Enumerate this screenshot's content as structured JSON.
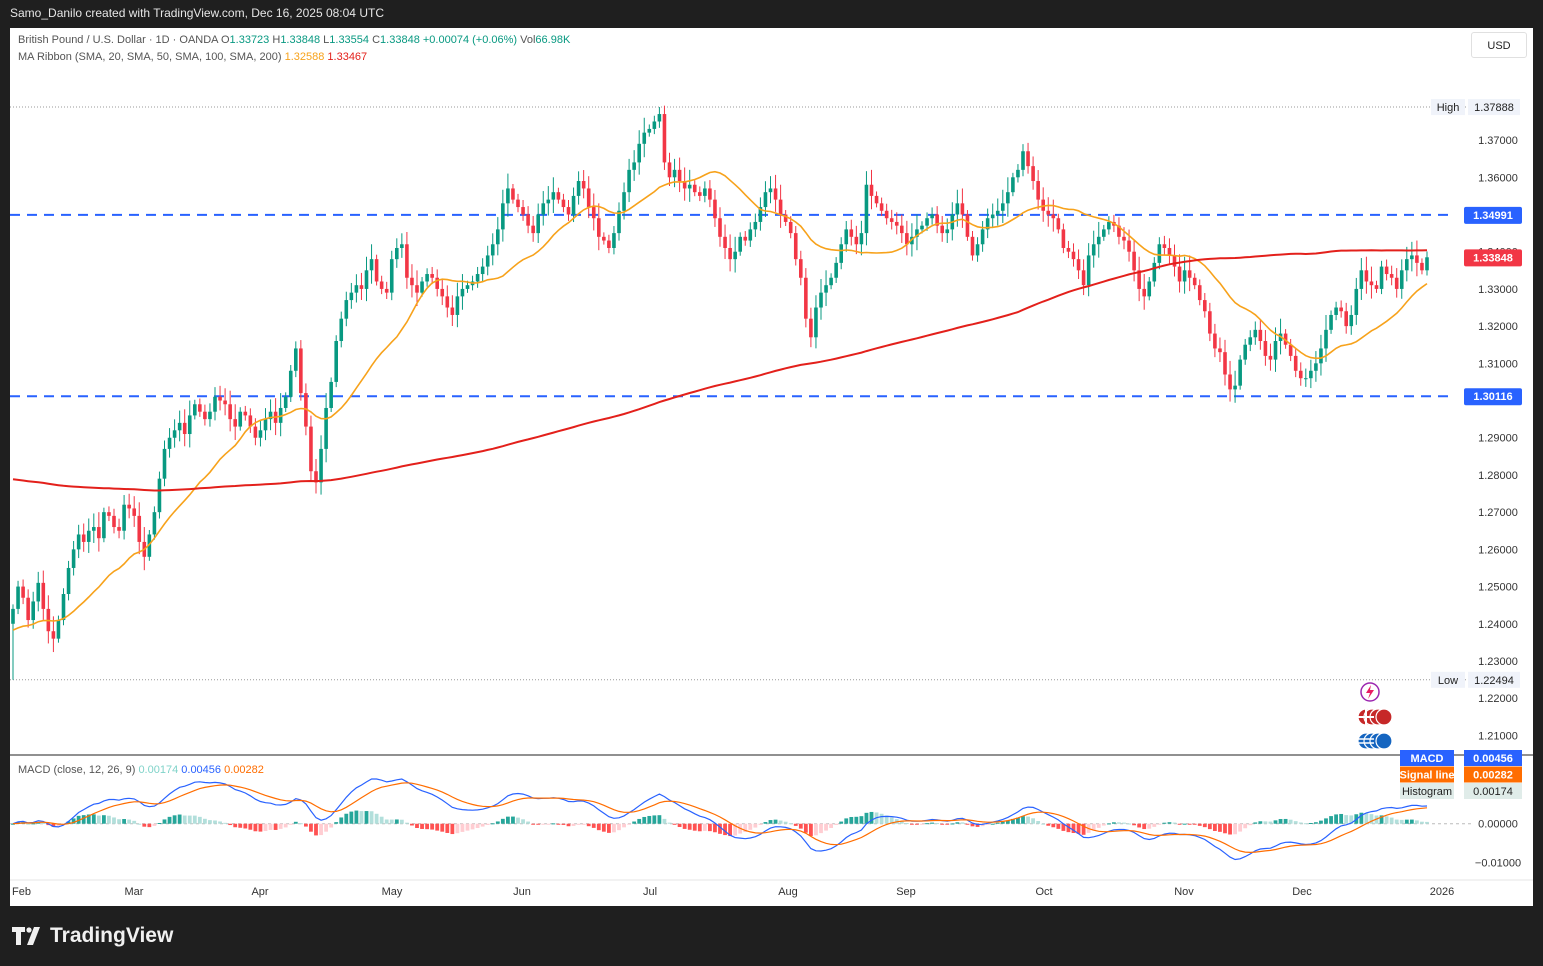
{
  "header": {
    "credit": "Samo_Danilo created with TradingView.com, Dec 16, 2025 08:04 UTC"
  },
  "currency_button": "USD",
  "legend": {
    "symbol": "British Pound / U.S. Dollar · 1D · OANDA",
    "o_label": "O",
    "o_val": "1.33723",
    "h_label": "H",
    "h_val": "1.33848",
    "l_label": "L",
    "l_val": "1.33554",
    "c_label": "C",
    "c_val": "1.33848",
    "change": "+0.00074 (+0.06%)",
    "vol_label": "Vol",
    "vol_val": "66.98K",
    "ma_name": "MA Ribbon (SMA, 20, SMA, 50, SMA, 100, SMA, 200)",
    "ma1": "1.32588",
    "ma2": "1.33467",
    "macd_name": "MACD (close, 12, 26, 9)",
    "macd_hist": "0.00174",
    "macd_macd": "0.00456",
    "macd_signal": "0.00282"
  },
  "colors": {
    "up": "#089981",
    "down": "#f23645",
    "sma20": "#f7a21b",
    "sma200": "#e3201b",
    "level": "#2962ff",
    "macd": "#2962ff",
    "signal": "#ff6d00"
  },
  "brand": "TradingView",
  "chart_data": {
    "type": "candlestick",
    "symbol": "GBPUSD",
    "timeframe": "1D",
    "ylim": [
      1.205,
      1.384
    ],
    "y_ticks": [
      "1.37000",
      "1.36000",
      "1.35000",
      "1.34000",
      "1.33000",
      "1.32000",
      "1.31000",
      "1.30000",
      "1.29000",
      "1.28000",
      "1.27000",
      "1.26000",
      "1.25000",
      "1.24000",
      "1.23000",
      "1.22000",
      "1.21000"
    ],
    "x_ticks": [
      "Feb",
      "Mar",
      "Apr",
      "May",
      "Jun",
      "Jul",
      "Aug",
      "Sep",
      "Oct",
      "Nov",
      "Dec",
      "2026"
    ],
    "high": {
      "label": "High",
      "value": "1.37888"
    },
    "low": {
      "label": "Low",
      "value": "1.22494"
    },
    "last_price": "1.33848",
    "levels": [
      {
        "value": 1.34991,
        "label": "1.34991"
      },
      {
        "value": 1.30116,
        "label": "1.30116"
      }
    ],
    "closes": [
      1.244,
      1.25,
      1.247,
      1.241,
      1.246,
      1.251,
      1.244,
      1.238,
      1.236,
      1.241,
      1.248,
      1.255,
      1.26,
      1.264,
      1.262,
      1.265,
      1.266,
      1.263,
      1.27,
      1.269,
      1.266,
      1.265,
      1.272,
      1.271,
      1.269,
      1.262,
      1.258,
      1.264,
      1.27,
      1.279,
      1.287,
      1.29,
      1.292,
      1.294,
      1.291,
      1.296,
      1.299,
      1.297,
      1.295,
      1.297,
      1.301,
      1.3,
      1.299,
      1.295,
      1.293,
      1.297,
      1.296,
      1.293,
      1.29,
      1.292,
      1.295,
      1.297,
      1.294,
      1.298,
      1.301,
      1.308,
      1.314,
      1.302,
      1.293,
      1.281,
      1.278,
      1.287,
      1.298,
      1.305,
      1.316,
      1.322,
      1.327,
      1.329,
      1.331,
      1.33,
      1.335,
      1.338,
      1.332,
      1.33,
      1.329,
      1.338,
      1.341,
      1.342,
      1.333,
      1.331,
      1.329,
      1.332,
      1.334,
      1.333,
      1.33,
      1.328,
      1.325,
      1.323,
      1.328,
      1.33,
      1.331,
      1.332,
      1.334,
      1.336,
      1.339,
      1.342,
      1.346,
      1.353,
      1.357,
      1.354,
      1.352,
      1.35,
      1.347,
      1.345,
      1.35,
      1.353,
      1.354,
      1.356,
      1.354,
      1.352,
      1.35,
      1.355,
      1.359,
      1.357,
      1.352,
      1.349,
      1.344,
      1.343,
      1.341,
      1.345,
      1.351,
      1.356,
      1.362,
      1.364,
      1.369,
      1.372,
      1.373,
      1.375,
      1.377,
      1.364,
      1.36,
      1.362,
      1.359,
      1.357,
      1.358,
      1.356,
      1.355,
      1.357,
      1.354,
      1.349,
      1.344,
      1.341,
      1.338,
      1.34,
      1.344,
      1.343,
      1.346,
      1.348,
      1.352,
      1.356,
      1.357,
      1.354,
      1.35,
      1.348,
      1.345,
      1.338,
      1.333,
      1.322,
      1.317,
      1.325,
      1.329,
      1.331,
      1.333,
      1.337,
      1.342,
      1.346,
      1.344,
      1.342,
      1.345,
      1.358,
      1.355,
      1.353,
      1.351,
      1.349,
      1.348,
      1.347,
      1.345,
      1.342,
      1.344,
      1.346,
      1.347,
      1.349,
      1.35,
      1.347,
      1.345,
      1.346,
      1.35,
      1.353,
      1.35,
      1.344,
      1.339,
      1.342,
      1.346,
      1.349,
      1.35,
      1.351,
      1.353,
      1.356,
      1.36,
      1.362,
      1.367,
      1.363,
      1.359,
      1.354,
      1.351,
      1.35,
      1.349,
      1.346,
      1.341,
      1.34,
      1.338,
      1.335,
      1.331,
      1.339,
      1.342,
      1.344,
      1.346,
      1.348,
      1.347,
      1.344,
      1.343,
      1.34,
      1.335,
      1.33,
      1.328,
      1.332,
      1.337,
      1.342,
      1.341,
      1.339,
      1.336,
      1.332,
      1.335,
      1.333,
      1.331,
      1.327,
      1.324,
      1.318,
      1.314,
      1.313,
      1.307,
      1.303,
      1.304,
      1.311,
      1.315,
      1.317,
      1.319,
      1.316,
      1.312,
      1.311,
      1.316,
      1.318,
      1.315,
      1.312,
      1.308,
      1.306,
      1.306,
      1.308,
      1.31,
      1.314,
      1.319,
      1.323,
      1.325,
      1.324,
      1.32,
      1.323,
      1.33,
      1.335,
      1.332,
      1.331,
      1.33,
      1.336,
      1.334,
      1.333,
      1.33,
      1.335,
      1.338,
      1.339,
      1.337,
      1.335,
      1.3385
    ],
    "series": [
      {
        "name": "SMA 20"
      },
      {
        "name": "SMA 200"
      }
    ],
    "macd": {
      "ylim": [
        -0.0135,
        0.0175
      ],
      "y_ticks": [
        "0.00456",
        "0.00282",
        "0.00174",
        "0.00000",
        "−0.01000"
      ],
      "labels": [
        {
          "name": "MACD",
          "value": "0.00456"
        },
        {
          "name": "Signal line",
          "value": "0.00282"
        },
        {
          "name": "Histogram",
          "value": "0.00174"
        }
      ]
    }
  }
}
